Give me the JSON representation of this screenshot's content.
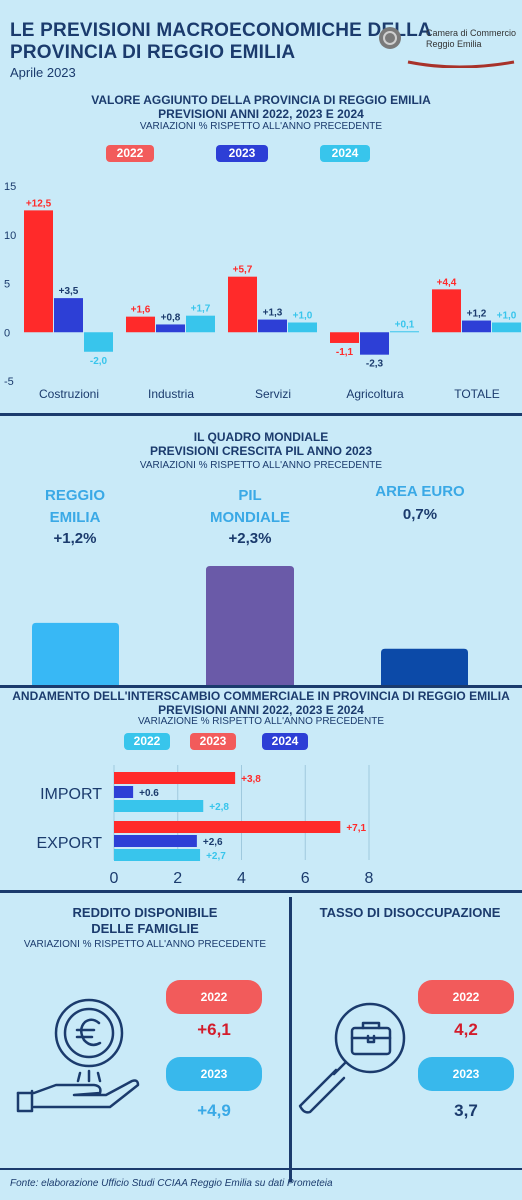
{
  "header": {
    "title_line1": "LE PREVISIONI MACROECONOMICHE DELLA",
    "title_line2": "PROVINCIA DI REGGIO EMILIA",
    "date": "Aprile 2023",
    "logo_line1": "Camera di Commercio",
    "logo_line2": "Reggio Emilia"
  },
  "colors": {
    "c2022": "#ff2a2a",
    "c2023": "#2d3fd6",
    "c2024": "#38c5ec",
    "pill2022": "#f25b5b",
    "navy": "#1b3b6d"
  },
  "section1": {
    "title1": "VALORE AGGIUNTO DELLA PROVINCIA DI REGGIO EMILIA",
    "title2": "PREVISIONI ANNI 2022, 2023 E 2024",
    "subtitle": "VARIAZIONI % RISPETTO ALL'ANNO PRECEDENTE",
    "legend": [
      "2022",
      "2023",
      "2024"
    ]
  },
  "section2": {
    "title1": "IL QUADRO MONDIALE",
    "title2": "PREVISIONI CRESCITA PIL ANNO 2023",
    "subtitle": "VARIAZIONI % RISPETTO ALL'ANNO PRECEDENTE",
    "items": [
      {
        "label1": "REGGIO",
        "label2": "EMILIA",
        "value": "+1,2%"
      },
      {
        "label1": "PIL",
        "label2": "MONDIALE",
        "value": "+2,3%"
      },
      {
        "label1": "AREA EURO",
        "label2": "",
        "value": "0,7%"
      }
    ]
  },
  "section3": {
    "title1": "ANDAMENTO DELL'INTERSCAMBIO COMMERCIALE IN PROVINCIA DI REGGIO EMILIA",
    "title2": "PREVISIONI ANNI  2022, 2023 E 2024",
    "subtitle": "VARIAZIONE % RISPETTO ALL'ANNO PRECEDENTE",
    "legend": [
      "2022",
      "2023",
      "2024"
    ]
  },
  "section4": {
    "reddito_title1": "REDDITO DISPONIBILE",
    "reddito_title2": "DELLE FAMIGLIE",
    "reddito_subtitle": "VARIAZIONI % RISPETTO ALL'ANNO PRECEDENTE",
    "reddito": [
      {
        "year": "2022",
        "value": "+6,1"
      },
      {
        "year": "2023",
        "value": "+4,9"
      }
    ],
    "disocc_title": "TASSO DI DISOCCUPAZIONE",
    "disocc": [
      {
        "year": "2022",
        "value": "4,2"
      },
      {
        "year": "2023",
        "value": "3,7"
      }
    ]
  },
  "footer": "Fonte: elaborazione Ufficio Studi CCIAA Reggio Emilia su dati Prometeia",
  "chart_data": [
    {
      "type": "bar",
      "categories": [
        "Costruzioni",
        "Industria",
        "Servizi",
        "Agricoltura",
        "TOTALE"
      ],
      "series": [
        {
          "name": "2022",
          "values": [
            12.5,
            1.6,
            5.7,
            -1.1,
            4.4
          ],
          "labels": [
            "+12,5",
            "+1,6",
            "+5,7",
            "-1,1",
            "+4,4"
          ]
        },
        {
          "name": "2023",
          "values": [
            3.5,
            0.8,
            1.3,
            -2.3,
            1.2
          ],
          "labels": [
            "+3,5",
            "+0,8",
            "+1,3",
            "-2,3",
            "+1,2"
          ]
        },
        {
          "name": "2024",
          "values": [
            -2.0,
            1.7,
            1.0,
            0.1,
            1.0
          ],
          "labels": [
            "-2,0",
            "+1,7",
            "+1,0",
            "+0,1",
            "+1,0"
          ]
        }
      ],
      "ylim": [
        -5,
        15
      ],
      "yticks": [
        15,
        10,
        5,
        0,
        -5
      ]
    },
    {
      "type": "bar",
      "categories": [
        "REGGIO EMILIA",
        "PIL MONDIALE",
        "AREA EURO"
      ],
      "values": [
        1.2,
        2.3,
        0.7
      ]
    },
    {
      "type": "bar",
      "orientation": "horizontal",
      "categories": [
        "IMPORT",
        "EXPORT"
      ],
      "series": [
        {
          "name": "2023",
          "values": [
            3.8,
            7.1
          ],
          "labels": [
            "+3,8",
            "+7,1"
          ]
        },
        {
          "name": "2024",
          "values": [
            0.6,
            2.6
          ],
          "labels": [
            "+0.6",
            "+2,6"
          ]
        },
        {
          "name": "2022",
          "values": [
            2.8,
            2.7
          ],
          "labels": [
            "+2,8",
            "+2,7"
          ]
        }
      ],
      "xlim": [
        0,
        8
      ],
      "xticks": [
        0,
        2,
        4,
        6,
        8
      ]
    }
  ]
}
